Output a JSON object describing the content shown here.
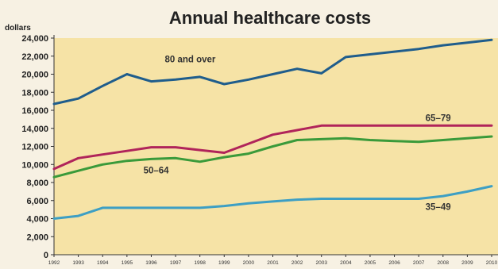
{
  "chart_data": {
    "type": "line",
    "title": "Annual healthcare costs",
    "ylabel": "dollars",
    "xlabel": "",
    "x": [
      "1992",
      "1993",
      "1994",
      "1995",
      "1996",
      "1997",
      "1998",
      "1999",
      "2000",
      "2001",
      "2002",
      "2003",
      "2004",
      "2005",
      "2006",
      "2007",
      "2008",
      "2009",
      "2010"
    ],
    "ylim": [
      0,
      24000
    ],
    "yticks": [
      0,
      2000,
      4000,
      6000,
      8000,
      10000,
      12000,
      14000,
      16000,
      18000,
      20000,
      22000,
      24000
    ],
    "ytick_labels": [
      "0",
      "2,000",
      "4,000",
      "6,000",
      "8,000",
      "10,000",
      "12,000",
      "14,000",
      "16,000",
      "18,000",
      "20,000",
      "22,000",
      "24,000"
    ],
    "grid": false,
    "legend": "none (series labelled directly on lines)",
    "series": [
      {
        "name": "80 and over",
        "color": "#1f5d8c",
        "values": [
          16700,
          17300,
          18700,
          20000,
          19200,
          19400,
          19700,
          18900,
          19400,
          20000,
          20600,
          20100,
          21900,
          22200,
          22500,
          22800,
          23200,
          23500,
          23800
        ]
      },
      {
        "name": "65–79",
        "color": "#b0245a",
        "values": [
          9500,
          10700,
          11100,
          11500,
          11900,
          11900,
          11600,
          11300,
          12300,
          13300,
          13800,
          14300,
          14300,
          14300,
          14300,
          14300,
          14300,
          14300,
          14300
        ]
      },
      {
        "name": "50–64",
        "color": "#3a9a3a",
        "values": [
          8600,
          9300,
          10000,
          10400,
          10600,
          10700,
          10300,
          10800,
          11200,
          12000,
          12700,
          12800,
          12900,
          12700,
          12600,
          12500,
          12700,
          12900,
          13100
        ]
      },
      {
        "name": "35–49",
        "color": "#3d9fc4",
        "values": [
          4000,
          4300,
          5200,
          5200,
          5200,
          5200,
          5200,
          5400,
          5700,
          5900,
          6100,
          6200,
          6200,
          6200,
          6200,
          6200,
          6500,
          7000,
          7600
        ]
      }
    ]
  },
  "colors": {
    "plot_background": "#f6e3a6",
    "page_background": "#f7f1e3",
    "axis": "#333333"
  }
}
